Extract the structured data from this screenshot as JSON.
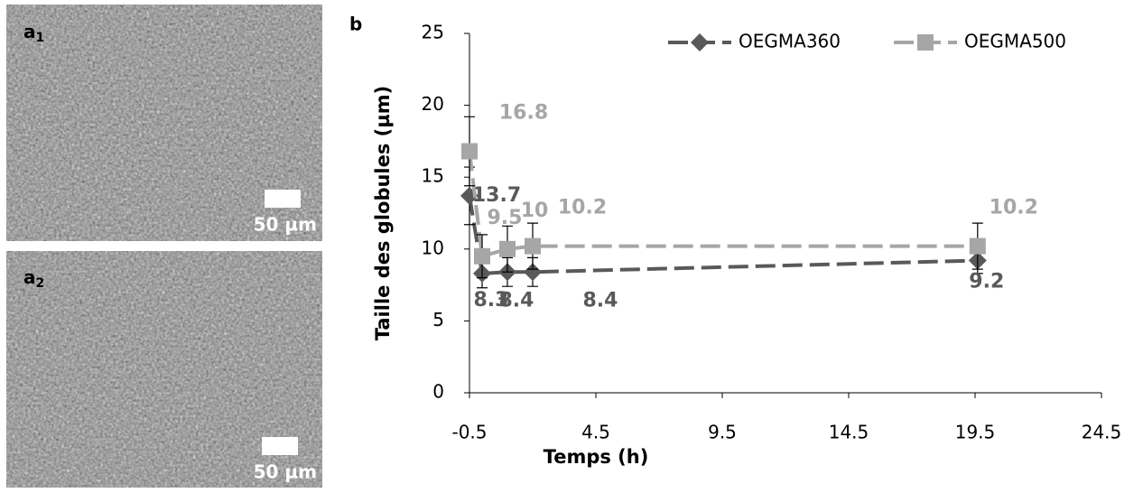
{
  "panels": [
    {
      "letter": "a",
      "sub": "1",
      "scale_bar": "50 µm"
    },
    {
      "letter": "a",
      "sub": "2",
      "scale_bar": "50 µm"
    }
  ],
  "chart_data": {
    "type": "line",
    "panel_label": "b",
    "x_label": "Temps (h)",
    "y_label": "Taille des globules (µm)",
    "xlim": [
      -0.5,
      24.5
    ],
    "xticks": [
      -0.5,
      4.5,
      9.5,
      14.5,
      19.5,
      24.5
    ],
    "ylim": [
      0,
      25
    ],
    "yticks": [
      0,
      5,
      10,
      15,
      20,
      25
    ],
    "legend": "top-right",
    "x": [
      -0.5,
      0,
      1,
      2,
      19.6
    ],
    "series": [
      {
        "name": "OEGMA360",
        "color": "#595959",
        "marker": "diamond",
        "values": [
          13.7,
          8.3,
          8.4,
          8.4,
          9.2
        ],
        "errors": [
          2,
          1,
          1,
          1,
          0.9
        ]
      },
      {
        "name": "OEGMA500",
        "color": "#a6a6a6",
        "marker": "square",
        "values": [
          16.8,
          9.5,
          10,
          10.2,
          10.2
        ],
        "errors": [
          2.4,
          1.5,
          1.6,
          1.6,
          1.6
        ]
      }
    ]
  }
}
